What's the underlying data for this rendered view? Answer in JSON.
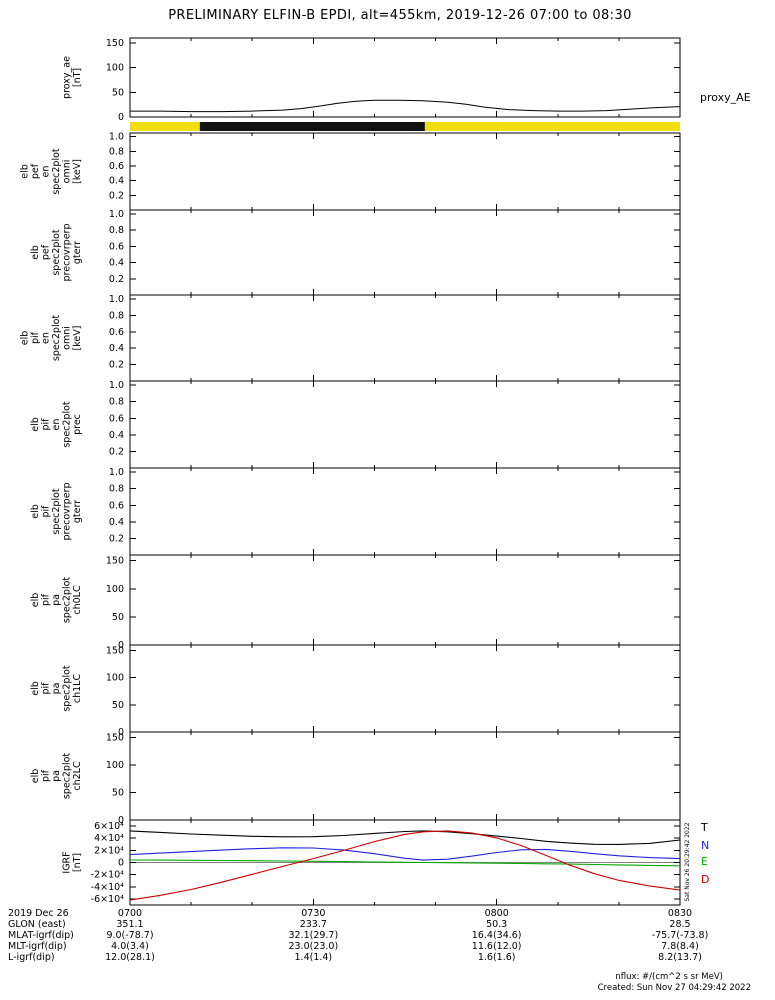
{
  "title": "PRELIMINARY ELFIN-B EPDI, alt=455km, 2019-12-26 07:00 to 08:30",
  "right_labels": {
    "proxy_ae": "proxy_AE"
  },
  "side_timestamp": "Sat Nov 26 20:29:42 2022",
  "footer": {
    "units_note": "nflux: #/(cm^2 s sr MeV)",
    "created": "Created: Sun Nov 27 04:29:42 2022"
  },
  "colors": {
    "frame": "#000000",
    "yellow_bar": "#f0df10",
    "bar_black": "#111111",
    "trace_T": "#000000",
    "trace_N": "#2222dd",
    "trace_E": "#00aa00",
    "trace_D": "#cc0000"
  },
  "x_axis": {
    "range_minutes": [
      0,
      90
    ],
    "tick_minutes": [
      0,
      30,
      60,
      90
    ],
    "tick_labels": [
      "0700",
      "0730",
      "0800",
      "0830"
    ],
    "minor_step_minutes": 10
  },
  "panels": [
    {
      "name": "proxy_ae",
      "label_lines": [
        "proxy_ae",
        "[nT]"
      ],
      "y_range": [
        0,
        160
      ],
      "y_ticks": [
        0,
        50,
        100,
        150
      ],
      "y_tick_labels": [
        "0",
        "50",
        "100",
        "150"
      ]
    },
    {
      "name": "elb_pef_en_spec2plot_omni",
      "label_lines": [
        "elb",
        "pef",
        "en",
        "spec2plot",
        "omni",
        "[keV]"
      ],
      "y_range": [
        0,
        1.05
      ],
      "y_ticks": [
        0.2,
        0.4,
        0.6,
        0.8,
        1.0
      ],
      "y_tick_labels": [
        "0.2",
        "0.4",
        "0.6",
        "0.8",
        "1.0"
      ]
    },
    {
      "name": "elb_pef_spec2plot_precovrperp_gterr",
      "label_lines": [
        "elb",
        "pef",
        "spec2plot",
        "precovrperp",
        "gterr"
      ],
      "y_range": [
        0,
        1.05
      ],
      "y_ticks": [
        0.2,
        0.4,
        0.6,
        0.8,
        1.0
      ],
      "y_tick_labels": [
        "0.2",
        "0.4",
        "0.6",
        "0.8",
        "1.0"
      ]
    },
    {
      "name": "elb_pif_en_spec2plot_omni",
      "label_lines": [
        "elb",
        "pif",
        "en",
        "spec2plot",
        "omni",
        "[keV]"
      ],
      "y_range": [
        0,
        1.05
      ],
      "y_ticks": [
        0.2,
        0.4,
        0.6,
        0.8,
        1.0
      ],
      "y_tick_labels": [
        "0.2",
        "0.4",
        "0.6",
        "0.8",
        "1.0"
      ]
    },
    {
      "name": "elb_pif_en_spec2plot_prec",
      "label_lines": [
        "elb",
        "pif",
        "en",
        "spec2plot",
        "prec"
      ],
      "y_range": [
        0,
        1.05
      ],
      "y_ticks": [
        0.2,
        0.4,
        0.6,
        0.8,
        1.0
      ],
      "y_tick_labels": [
        "0.2",
        "0.4",
        "0.6",
        "0.8",
        "1.0"
      ]
    },
    {
      "name": "elb_pif_spec2plot_precovrperp_gterr",
      "label_lines": [
        "elb",
        "pif",
        "spec2plot",
        "precovrperp",
        "gterr"
      ],
      "y_range": [
        0,
        1.05
      ],
      "y_ticks": [
        0.2,
        0.4,
        0.6,
        0.8,
        1.0
      ],
      "y_tick_labels": [
        "0.2",
        "0.4",
        "0.6",
        "0.8",
        "1.0"
      ]
    },
    {
      "name": "elb_pif_pa_spec2plot_ch0LC",
      "label_lines": [
        "elb",
        "pif",
        "pa",
        "spec2plot",
        "ch0LC"
      ],
      "y_range": [
        0,
        160
      ],
      "y_ticks": [
        0,
        50,
        100,
        150
      ],
      "y_tick_labels": [
        "0",
        "50",
        "100",
        "150"
      ]
    },
    {
      "name": "elb_pif_pa_spec2plot_ch1LC",
      "label_lines": [
        "elb",
        "pif",
        "pa",
        "spec2plot",
        "ch1LC"
      ],
      "y_range": [
        0,
        160
      ],
      "y_ticks": [
        0,
        50,
        100,
        150
      ],
      "y_tick_labels": [
        "0",
        "50",
        "100",
        "150"
      ]
    },
    {
      "name": "elb_pif_pa_spec2plot_ch2LC",
      "label_lines": [
        "elb",
        "pif",
        "pa",
        "spec2plot",
        "ch2LC"
      ],
      "y_range": [
        0,
        160
      ],
      "y_ticks": [
        0,
        50,
        100,
        150
      ],
      "y_tick_labels": [
        "0",
        "50",
        "100",
        "150"
      ]
    },
    {
      "name": "igrf",
      "label_lines": [
        "IGRF",
        "[nT]"
      ],
      "y_range": [
        -70000,
        70000
      ],
      "y_ticks": [
        -60000,
        -40000,
        -20000,
        0,
        20000,
        40000,
        60000
      ],
      "y_tick_labels": [
        "-6×10⁴",
        "-4×10⁴",
        "-2×10⁴",
        "0",
        "2×10⁴",
        "4×10⁴",
        "6×10⁴"
      ]
    }
  ],
  "legend": [
    {
      "label": "T",
      "color": "#000000"
    },
    {
      "label": "N",
      "color": "#2222dd"
    },
    {
      "label": "E",
      "color": "#00aa00"
    },
    {
      "label": "D",
      "color": "#cc0000"
    }
  ],
  "bottom_table": {
    "date_label": "2019 Dec 26",
    "rows": [
      {
        "label": "GLON (east)",
        "values": [
          "351.1",
          "233.7",
          "50.3",
          "28.5"
        ]
      },
      {
        "label": "MLAT-igrf(dip)",
        "values": [
          "9.0(-78.7)",
          "32.1(29.7)",
          "16.4(34.6)",
          "-75.7(-73.8)"
        ]
      },
      {
        "label": "MLT-igrf(dip)",
        "values": [
          "4.0(3.4)",
          "23.0(23.0)",
          "11.6(12.0)",
          "7.8(8.4)"
        ]
      },
      {
        "label": "L-igrf(dip)",
        "values": [
          "12.0(28.1)",
          "1.4(1.4)",
          "1.6(1.6)",
          "8.2(13.7)"
        ]
      }
    ]
  },
  "chart_data": [
    {
      "type": "line",
      "name": "proxy_AE",
      "panel_index": 0,
      "title": "",
      "ylabel": "proxy_ae [nT]",
      "ylim": [
        0,
        160
      ],
      "xlim_minutes": [
        0,
        90
      ],
      "color": "#000000",
      "x_minutes": [
        0,
        5,
        10,
        15,
        20,
        25,
        28,
        31,
        34,
        37,
        40,
        44,
        48,
        52,
        55,
        58,
        62,
        66,
        70,
        74,
        78,
        82,
        86,
        90
      ],
      "values": [
        12,
        12,
        11,
        11,
        12,
        14,
        17,
        22,
        28,
        32,
        34,
        34,
        33,
        30,
        26,
        20,
        15,
        13,
        12,
        12,
        13,
        16,
        19,
        21
      ]
    },
    {
      "type": "interval-bar",
      "name": "science_zone_bar",
      "background_color": "#f0df10",
      "segment_color": "#111111",
      "black_segment_frac": [
        0.127,
        0.536
      ]
    },
    {
      "type": "line",
      "name": "IGRF",
      "panel_index": 9,
      "ylabel": "IGRF [nT]",
      "ylim": [
        -70000,
        70000
      ],
      "xlim_minutes": [
        0,
        90
      ],
      "legend_position": "right",
      "x_minutes": [
        0,
        5,
        10,
        15,
        20,
        25,
        30,
        35,
        40,
        45,
        48,
        52,
        56,
        60,
        64,
        68,
        72,
        76,
        80,
        85,
        90
      ],
      "series": [
        {
          "name": "T",
          "color": "#000000",
          "values": [
            52000,
            49500,
            47000,
            45000,
            43200,
            42300,
            42500,
            44500,
            48000,
            51000,
            52000,
            50500,
            47500,
            43500,
            39500,
            35000,
            32000,
            30000,
            29800,
            31500,
            37000
          ]
        },
        {
          "name": "N",
          "color": "#2222dd",
          "values": [
            13000,
            15500,
            18000,
            20500,
            22800,
            24200,
            23800,
            20500,
            14500,
            7000,
            4000,
            5500,
            10500,
            16500,
            21000,
            21500,
            18500,
            14500,
            11000,
            8000,
            6500
          ]
        },
        {
          "name": "E",
          "color": "#00aa00",
          "values": [
            4200,
            3900,
            3600,
            3300,
            2900,
            2500,
            2000,
            1500,
            900,
            300,
            0,
            -300,
            -700,
            -1100,
            -1600,
            -2100,
            -2700,
            -3300,
            -3900,
            -4700,
            -5400
          ]
        },
        {
          "name": "D",
          "color": "#cc0000",
          "values": [
            -62000,
            -54000,
            -44500,
            -32500,
            -19500,
            -6500,
            6500,
            20000,
            34500,
            46500,
            50500,
            52000,
            48500,
            40500,
            28000,
            12000,
            -4500,
            -18500,
            -29500,
            -38500,
            -45500
          ]
        }
      ]
    }
  ]
}
